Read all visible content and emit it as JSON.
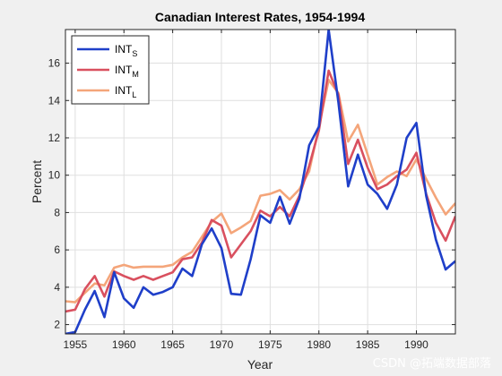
{
  "chart_data": {
    "type": "line",
    "title": "Canadian Interest Rates, 1954-1994",
    "xlabel": "Year",
    "ylabel": "Percent",
    "xlim": [
      1954,
      1994
    ],
    "ylim": [
      1.5,
      17.8
    ],
    "xticks": [
      1955,
      1960,
      1965,
      1970,
      1975,
      1980,
      1985,
      1990
    ],
    "xtick_labels": [
      "1955",
      "1960",
      "1965",
      "1970",
      "1975",
      "1980",
      "1985",
      "1990"
    ],
    "yticks": [
      2,
      4,
      6,
      8,
      10,
      12,
      14,
      16
    ],
    "ytick_labels": [
      "2",
      "4",
      "6",
      "8",
      "10",
      "12",
      "14",
      "16"
    ],
    "grid": true,
    "legend_position": "top-left",
    "x": [
      1954,
      1955,
      1956,
      1957,
      1958,
      1959,
      1960,
      1961,
      1962,
      1963,
      1964,
      1965,
      1966,
      1967,
      1968,
      1969,
      1970,
      1971,
      1972,
      1973,
      1974,
      1975,
      1976,
      1977,
      1978,
      1979,
      1980,
      1981,
      1982,
      1983,
      1984,
      1985,
      1986,
      1987,
      1988,
      1989,
      1990,
      1991,
      1992,
      1993,
      1994
    ],
    "series": [
      {
        "name": "INT",
        "name_sub": "S",
        "color": "#1f3fc9",
        "values": [
          1.5,
          1.6,
          2.8,
          3.8,
          2.4,
          4.8,
          3.4,
          2.9,
          4.0,
          3.6,
          3.75,
          4.0,
          5.0,
          4.6,
          6.3,
          7.15,
          6.1,
          3.65,
          3.6,
          5.5,
          7.85,
          7.45,
          8.85,
          7.4,
          8.75,
          11.6,
          12.6,
          17.8,
          13.9,
          9.4,
          11.1,
          9.5,
          9.0,
          8.2,
          9.5,
          12.0,
          12.8,
          8.9,
          6.55,
          4.95,
          5.4
        ]
      },
      {
        "name": "INT",
        "name_sub": "M",
        "color": "#d9505f",
        "values": [
          2.7,
          2.8,
          3.9,
          4.6,
          3.5,
          4.85,
          4.6,
          4.4,
          4.6,
          4.4,
          4.6,
          4.8,
          5.5,
          5.6,
          6.4,
          7.6,
          7.3,
          5.6,
          6.3,
          7.0,
          8.1,
          7.8,
          8.3,
          7.8,
          8.9,
          10.5,
          12.4,
          15.6,
          14.3,
          10.6,
          11.9,
          10.4,
          9.25,
          9.5,
          9.95,
          10.3,
          11.2,
          9.0,
          7.45,
          6.5,
          7.8
        ]
      },
      {
        "name": "INT",
        "name_sub": "L",
        "color": "#f4a57a",
        "values": [
          3.25,
          3.2,
          3.7,
          4.2,
          4.1,
          5.05,
          5.2,
          5.05,
          5.1,
          5.1,
          5.1,
          5.2,
          5.6,
          5.9,
          6.7,
          7.5,
          7.95,
          6.9,
          7.2,
          7.55,
          8.9,
          9.0,
          9.2,
          8.7,
          9.25,
          10.2,
          12.6,
          15.1,
          14.4,
          11.8,
          12.7,
          11.1,
          9.5,
          9.9,
          10.2,
          9.95,
          10.85,
          9.8,
          8.8,
          7.9,
          8.5
        ]
      }
    ]
  },
  "watermark": "CSDN @拓端数据部落"
}
